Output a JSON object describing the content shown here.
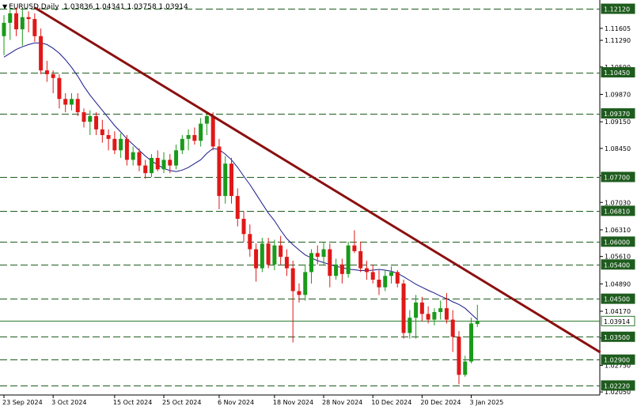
{
  "header": {
    "symbol": "EURUSD,Daily",
    "ohlc": "1.03836 1.04341 1.03758 1.03914"
  },
  "chart_data": {
    "type": "candlestick",
    "symbol": "EURUSD",
    "timeframe": "Daily",
    "ylim": [
      1.0197,
      1.1235
    ],
    "price_ticks": [
      "1.11605",
      "1.11290",
      "1.10590",
      "1.09870",
      "1.09150",
      "1.08450",
      "1.07730",
      "1.07030",
      "1.06310",
      "1.05610",
      "1.04890",
      "1.04170",
      "1.03470",
      "1.02750",
      "1.02050"
    ],
    "x_labels": [
      {
        "i": 0,
        "text": "23 Sep 2024"
      },
      {
        "i": 8,
        "text": "3 Oct 2024"
      },
      {
        "i": 18,
        "text": "15 Oct 2024"
      },
      {
        "i": 26,
        "text": "25 Oct 2024"
      },
      {
        "i": 35,
        "text": "6 Nov 2024"
      },
      {
        "i": 44,
        "text": "18 Nov 2024"
      },
      {
        "i": 52,
        "text": "28 Nov 2024"
      },
      {
        "i": 60,
        "text": "10 Dec 2024"
      },
      {
        "i": 68,
        "text": "20 Dec 2024"
      },
      {
        "i": 76,
        "text": "3 Jan 2025"
      }
    ],
    "levels": [
      "1.12120",
      "1.10450",
      "1.09370",
      "1.07700",
      "1.06810",
      "1.06000",
      "1.05400",
      "1.04500",
      "1.03500",
      "1.02900",
      "1.02220"
    ],
    "current_price": "1.03914",
    "trendline": {
      "from": {
        "i": 5,
        "price": 1.1215
      },
      "to": {
        "i": 97,
        "price": 1.0309
      }
    },
    "ma": [
      1.1085,
      1.1095,
      1.1105,
      1.1112,
      1.1118,
      1.1122,
      1.1122,
      1.1118,
      1.1108,
      1.1095,
      1.1078,
      1.1058,
      1.1035,
      1.1008,
      1.0985,
      1.0965,
      1.0945,
      1.0925,
      1.0905,
      1.0888,
      1.087,
      1.0855,
      1.084,
      1.0825,
      1.0812,
      1.0802,
      1.0792,
      1.0787,
      1.0784,
      1.0788,
      1.0795,
      1.0805,
      1.0815,
      1.0832,
      1.0845,
      1.0842,
      1.083,
      1.0815,
      1.0795,
      1.0772,
      1.075,
      1.0725,
      1.07,
      1.0675,
      1.0655,
      1.063,
      1.0608,
      1.0592,
      1.0578,
      1.0565,
      1.0557,
      1.055,
      1.0545,
      1.054,
      1.0535,
      1.0532,
      1.0528,
      1.0526,
      1.0524,
      1.0524,
      1.0525,
      1.0527,
      1.0525,
      1.0522,
      1.0517,
      1.0508,
      1.0498,
      1.0488,
      1.048,
      1.0472,
      1.0465,
      1.0457,
      1.045,
      1.0442,
      1.0435,
      1.0425,
      1.041,
      1.0395
    ],
    "candles": [
      {
        "o": 1.114,
        "h": 1.1195,
        "l": 1.109,
        "c": 1.1175
      },
      {
        "o": 1.1175,
        "h": 1.1215,
        "l": 1.113,
        "c": 1.12
      },
      {
        "o": 1.12,
        "h": 1.1215,
        "l": 1.114,
        "c": 1.1158
      },
      {
        "o": 1.1158,
        "h": 1.121,
        "l": 1.1115,
        "c": 1.119
      },
      {
        "o": 1.119,
        "h": 1.1205,
        "l": 1.115,
        "c": 1.1185
      },
      {
        "o": 1.1185,
        "h": 1.12,
        "l": 1.1125,
        "c": 1.114
      },
      {
        "o": 1.114,
        "h": 1.116,
        "l": 1.104,
        "c": 1.105
      },
      {
        "o": 1.105,
        "h": 1.1075,
        "l": 1.102,
        "c": 1.104
      },
      {
        "o": 1.104,
        "h": 1.105,
        "l": 1.099,
        "c": 1.103
      },
      {
        "o": 1.103,
        "h": 1.104,
        "l": 1.095,
        "c": 1.0975
      },
      {
        "o": 1.0975,
        "h": 1.099,
        "l": 1.094,
        "c": 1.096
      },
      {
        "o": 1.096,
        "h": 1.099,
        "l": 1.0945,
        "c": 1.0975
      },
      {
        "o": 1.0975,
        "h": 1.099,
        "l": 1.093,
        "c": 1.094
      },
      {
        "o": 1.094,
        "h": 1.095,
        "l": 1.09,
        "c": 1.0915
      },
      {
        "o": 1.0915,
        "h": 1.0945,
        "l": 1.088,
        "c": 1.093
      },
      {
        "o": 1.093,
        "h": 1.094,
        "l": 1.088,
        "c": 1.0895
      },
      {
        "o": 1.0895,
        "h": 1.092,
        "l": 1.086,
        "c": 1.088
      },
      {
        "o": 1.088,
        "h": 1.0895,
        "l": 1.084,
        "c": 1.087
      },
      {
        "o": 1.087,
        "h": 1.089,
        "l": 1.083,
        "c": 1.084
      },
      {
        "o": 1.084,
        "h": 1.0885,
        "l": 1.082,
        "c": 1.087
      },
      {
        "o": 1.087,
        "h": 1.088,
        "l": 1.08,
        "c": 1.0815
      },
      {
        "o": 1.0815,
        "h": 1.085,
        "l": 1.08,
        "c": 1.0835
      },
      {
        "o": 1.0835,
        "h": 1.0845,
        "l": 1.0785,
        "c": 1.08
      },
      {
        "o": 1.08,
        "h": 1.0815,
        "l": 1.0765,
        "c": 1.078
      },
      {
        "o": 1.078,
        "h": 1.083,
        "l": 1.077,
        "c": 1.082
      },
      {
        "o": 1.082,
        "h": 1.084,
        "l": 1.0785,
        "c": 1.079
      },
      {
        "o": 1.079,
        "h": 1.0835,
        "l": 1.078,
        "c": 1.0815
      },
      {
        "o": 1.0815,
        "h": 1.083,
        "l": 1.078,
        "c": 1.08
      },
      {
        "o": 1.08,
        "h": 1.0855,
        "l": 1.079,
        "c": 1.084
      },
      {
        "o": 1.084,
        "h": 1.088,
        "l": 1.083,
        "c": 1.087
      },
      {
        "o": 1.087,
        "h": 1.0895,
        "l": 1.084,
        "c": 1.088
      },
      {
        "o": 1.088,
        "h": 1.09,
        "l": 1.0855,
        "c": 1.0865
      },
      {
        "o": 1.0865,
        "h": 1.0925,
        "l": 1.085,
        "c": 1.091
      },
      {
        "o": 1.091,
        "h": 1.094,
        "l": 1.088,
        "c": 1.093
      },
      {
        "o": 1.093,
        "h": 1.094,
        "l": 1.084,
        "c": 1.085
      },
      {
        "o": 1.085,
        "h": 1.087,
        "l": 1.0685,
        "c": 1.072
      },
      {
        "o": 1.072,
        "h": 1.0825,
        "l": 1.07,
        "c": 1.0805
      },
      {
        "o": 1.0805,
        "h": 1.082,
        "l": 1.07,
        "c": 1.072
      },
      {
        "o": 1.072,
        "h": 1.074,
        "l": 1.064,
        "c": 1.066
      },
      {
        "o": 1.066,
        "h": 1.068,
        "l": 1.06,
        "c": 1.062
      },
      {
        "o": 1.062,
        "h": 1.0645,
        "l": 1.056,
        "c": 1.058
      },
      {
        "o": 1.058,
        "h": 1.0595,
        "l": 1.0495,
        "c": 1.053
      },
      {
        "o": 1.053,
        "h": 1.061,
        "l": 1.052,
        "c": 1.0595
      },
      {
        "o": 1.0595,
        "h": 1.061,
        "l": 1.053,
        "c": 1.054
      },
      {
        "o": 1.054,
        "h": 1.0605,
        "l": 1.0525,
        "c": 1.059
      },
      {
        "o": 1.059,
        "h": 1.0615,
        "l": 1.054,
        "c": 1.056
      },
      {
        "o": 1.056,
        "h": 1.058,
        "l": 1.051,
        "c": 1.053
      },
      {
        "o": 1.053,
        "h": 1.055,
        "l": 1.0335,
        "c": 1.047
      },
      {
        "o": 1.047,
        "h": 1.049,
        "l": 1.044,
        "c": 1.046
      },
      {
        "o": 1.046,
        "h": 1.054,
        "l": 1.0445,
        "c": 1.052
      },
      {
        "o": 1.052,
        "h": 1.058,
        "l": 1.049,
        "c": 1.057
      },
      {
        "o": 1.057,
        "h": 1.059,
        "l": 1.054,
        "c": 1.056
      },
      {
        "o": 1.056,
        "h": 1.06,
        "l": 1.054,
        "c": 1.058
      },
      {
        "o": 1.058,
        "h": 1.0595,
        "l": 1.048,
        "c": 1.051
      },
      {
        "o": 1.051,
        "h": 1.0555,
        "l": 1.05,
        "c": 1.054
      },
      {
        "o": 1.054,
        "h": 1.0555,
        "l": 1.049,
        "c": 1.0515
      },
      {
        "o": 1.0515,
        "h": 1.06,
        "l": 1.0505,
        "c": 1.059
      },
      {
        "o": 1.059,
        "h": 1.063,
        "l": 1.057,
        "c": 1.0575
      },
      {
        "o": 1.0575,
        "h": 1.06,
        "l": 1.052,
        "c": 1.053
      },
      {
        "o": 1.053,
        "h": 1.055,
        "l": 1.05,
        "c": 1.052
      },
      {
        "o": 1.052,
        "h": 1.054,
        "l": 1.049,
        "c": 1.05
      },
      {
        "o": 1.05,
        "h": 1.0525,
        "l": 1.046,
        "c": 1.048
      },
      {
        "o": 1.048,
        "h": 1.0525,
        "l": 1.047,
        "c": 1.051
      },
      {
        "o": 1.051,
        "h": 1.0535,
        "l": 1.049,
        "c": 1.052
      },
      {
        "o": 1.052,
        "h": 1.0525,
        "l": 1.048,
        "c": 1.049
      },
      {
        "o": 1.049,
        "h": 1.05,
        "l": 1.0345,
        "c": 1.036
      },
      {
        "o": 1.036,
        "h": 1.042,
        "l": 1.0345,
        "c": 1.04
      },
      {
        "o": 1.04,
        "h": 1.046,
        "l": 1.0345,
        "c": 1.044
      },
      {
        "o": 1.044,
        "h": 1.0455,
        "l": 1.039,
        "c": 1.041
      },
      {
        "o": 1.041,
        "h": 1.043,
        "l": 1.0385,
        "c": 1.0395
      },
      {
        "o": 1.0395,
        "h": 1.0425,
        "l": 1.038,
        "c": 1.0415
      },
      {
        "o": 1.0415,
        "h": 1.0445,
        "l": 1.0395,
        "c": 1.0425
      },
      {
        "o": 1.0425,
        "h": 1.0465,
        "l": 1.0385,
        "c": 1.0395
      },
      {
        "o": 1.0395,
        "h": 1.042,
        "l": 1.031,
        "c": 1.035
      },
      {
        "o": 1.035,
        "h": 1.0365,
        "l": 1.0225,
        "c": 1.025
      },
      {
        "o": 1.025,
        "h": 1.03,
        "l": 1.0245,
        "c": 1.0285
      },
      {
        "o": 1.0285,
        "h": 1.04,
        "l": 1.028,
        "c": 1.0385
      },
      {
        "o": 1.03836,
        "h": 1.04341,
        "l": 1.03758,
        "c": 1.03914
      }
    ],
    "colors": {
      "up": "#1a9a1a",
      "down": "#e01818",
      "trendline": "#8b1010",
      "level": "#1e5c1e",
      "ma": "#1a1a8a",
      "current": "#2e7a2e"
    }
  }
}
